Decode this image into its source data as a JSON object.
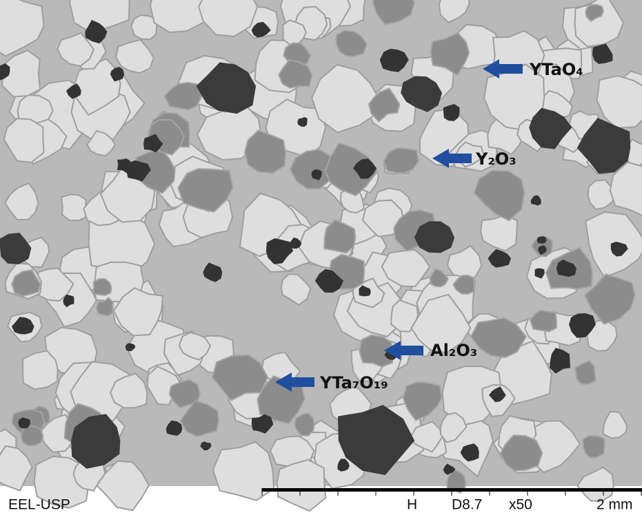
{
  "labels": [
    "YTaO₄",
    "Y₂O₃",
    "Al₂O₃",
    "YTa₇O₁₉"
  ],
  "footer": {
    "institution": "EEL-USP",
    "mode": "H",
    "working_distance": "D8.7",
    "magnification": "x50",
    "scale": "2 mm"
  }
}
